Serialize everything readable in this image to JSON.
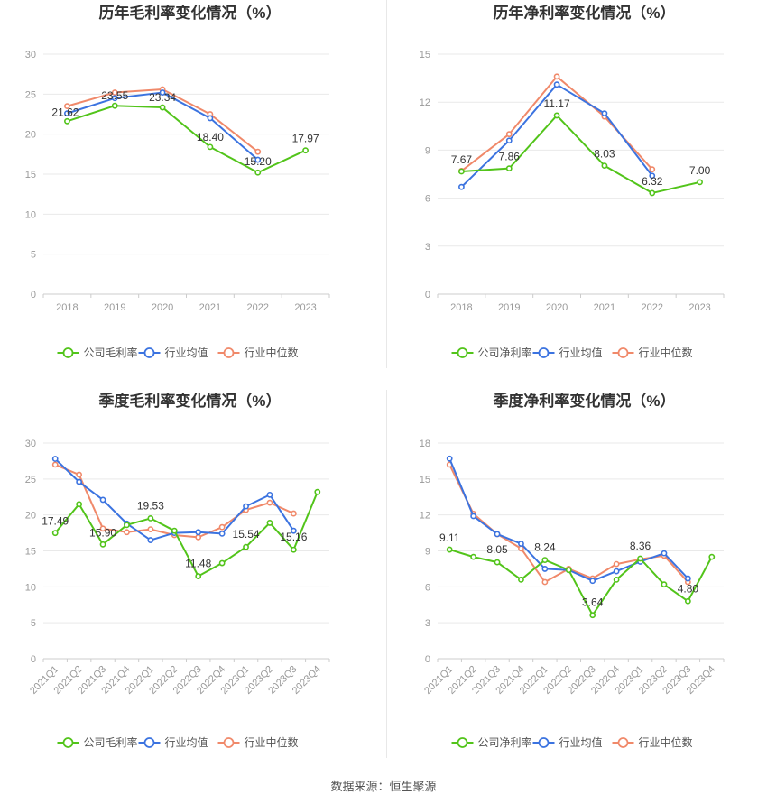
{
  "source_label": "数据来源：恒生聚源",
  "colors": {
    "company": "#52c41a",
    "avg": "#3b73e0",
    "median": "#f0896a"
  },
  "chart_data": [
    {
      "type": "line",
      "title": "历年毛利率变化情况（%）",
      "x": [
        "2018",
        "2019",
        "2020",
        "2021",
        "2022",
        "2023"
      ],
      "ylim": [
        0,
        30
      ],
      "yticks": [
        0,
        5,
        10,
        15,
        20,
        25,
        30
      ],
      "grid": true,
      "legend": "bottom",
      "series": [
        {
          "name": "公司毛利率",
          "key": "company",
          "values": [
            21.62,
            23.55,
            23.34,
            18.4,
            15.2,
            17.97
          ]
        },
        {
          "name": "行业均值",
          "key": "avg",
          "values": [
            22.6,
            24.5,
            25.2,
            22.0,
            16.8,
            null
          ]
        },
        {
          "name": "行业中位数",
          "key": "median",
          "values": [
            23.5,
            25.2,
            25.6,
            22.5,
            17.8,
            null
          ]
        }
      ],
      "data_labels": [
        {
          "i": 0,
          "text": "21.62"
        },
        {
          "i": 1,
          "text": "23.55"
        },
        {
          "i": 2,
          "text": "23.34"
        },
        {
          "i": 3,
          "text": "18.40"
        },
        {
          "i": 4,
          "text": "15.20"
        },
        {
          "i": 5,
          "text": "17.97"
        }
      ]
    },
    {
      "type": "line",
      "title": "历年净利率变化情况（%）",
      "x": [
        "2018",
        "2019",
        "2020",
        "2021",
        "2022",
        "2023"
      ],
      "ylim": [
        0,
        15
      ],
      "yticks": [
        0,
        3,
        6,
        9,
        12,
        15
      ],
      "grid": true,
      "legend": "bottom",
      "series": [
        {
          "name": "公司净利率",
          "key": "company",
          "values": [
            7.67,
            7.86,
            11.17,
            8.03,
            6.32,
            7.0
          ]
        },
        {
          "name": "行业均值",
          "key": "avg",
          "values": [
            6.7,
            9.6,
            13.1,
            11.3,
            7.4,
            null
          ]
        },
        {
          "name": "行业中位数",
          "key": "median",
          "values": [
            7.7,
            10.0,
            13.6,
            11.1,
            7.8,
            null
          ]
        }
      ],
      "data_labels": [
        {
          "i": 0,
          "text": "7.67"
        },
        {
          "i": 1,
          "text": "7.86"
        },
        {
          "i": 2,
          "text": "11.17"
        },
        {
          "i": 3,
          "text": "8.03"
        },
        {
          "i": 4,
          "text": "6.32"
        },
        {
          "i": 5,
          "text": "7.00"
        }
      ]
    },
    {
      "type": "line",
      "title": "季度毛利率变化情况（%）",
      "x": [
        "2021Q1",
        "2021Q2",
        "2021Q3",
        "2021Q4",
        "2022Q1",
        "2022Q2",
        "2022Q3",
        "2022Q4",
        "2023Q1",
        "2023Q2",
        "2023Q3",
        "2023Q4"
      ],
      "ylim": [
        0,
        30
      ],
      "yticks": [
        0,
        5,
        10,
        15,
        20,
        25,
        30
      ],
      "grid": true,
      "legend": "bottom",
      "series": [
        {
          "name": "公司毛利率",
          "key": "company",
          "values": [
            17.49,
            21.5,
            15.9,
            18.6,
            19.53,
            17.8,
            11.48,
            13.3,
            15.54,
            18.9,
            15.16,
            23.2
          ]
        },
        {
          "name": "行业均值",
          "key": "avg",
          "values": [
            27.8,
            24.6,
            22.1,
            18.8,
            16.5,
            17.5,
            17.6,
            17.4,
            21.2,
            22.8,
            17.8,
            null
          ]
        },
        {
          "name": "行业中位数",
          "key": "median",
          "values": [
            27.0,
            25.6,
            18.1,
            17.6,
            18.0,
            17.2,
            16.9,
            18.3,
            20.7,
            21.7,
            20.2,
            null
          ]
        }
      ],
      "data_labels": [
        {
          "i": 0,
          "text": "17.49"
        },
        {
          "i": 2,
          "text": "15.90"
        },
        {
          "i": 4,
          "text": "19.53"
        },
        {
          "i": 6,
          "text": "11.48"
        },
        {
          "i": 8,
          "text": "15.54"
        },
        {
          "i": 10,
          "text": "15.16"
        }
      ]
    },
    {
      "type": "line",
      "title": "季度净利率变化情况（%）",
      "x": [
        "2021Q1",
        "2021Q2",
        "2021Q3",
        "2021Q4",
        "2022Q1",
        "2022Q2",
        "2022Q3",
        "2022Q4",
        "2023Q1",
        "2023Q2",
        "2023Q3",
        "2023Q4"
      ],
      "ylim": [
        0,
        18
      ],
      "yticks": [
        0,
        3,
        6,
        9,
        12,
        15,
        18
      ],
      "grid": true,
      "legend": "bottom",
      "series": [
        {
          "name": "公司净利率",
          "key": "company",
          "values": [
            9.11,
            8.5,
            8.05,
            6.6,
            8.24,
            7.4,
            3.64,
            6.6,
            8.36,
            6.2,
            4.8,
            8.5
          ]
        },
        {
          "name": "行业均值",
          "key": "avg",
          "values": [
            16.7,
            11.9,
            10.4,
            9.6,
            7.5,
            7.4,
            6.5,
            7.3,
            8.1,
            8.8,
            6.7,
            null
          ]
        },
        {
          "name": "行业中位数",
          "key": "median",
          "values": [
            16.2,
            12.1,
            10.4,
            9.2,
            6.4,
            7.5,
            6.7,
            7.9,
            8.3,
            8.6,
            6.4,
            null
          ]
        }
      ],
      "data_labels": [
        {
          "i": 0,
          "text": "9.11"
        },
        {
          "i": 2,
          "text": "8.05"
        },
        {
          "i": 4,
          "text": "8.24"
        },
        {
          "i": 6,
          "text": "3.64"
        },
        {
          "i": 8,
          "text": "8.36"
        },
        {
          "i": 10,
          "text": "4.80"
        }
      ]
    }
  ]
}
